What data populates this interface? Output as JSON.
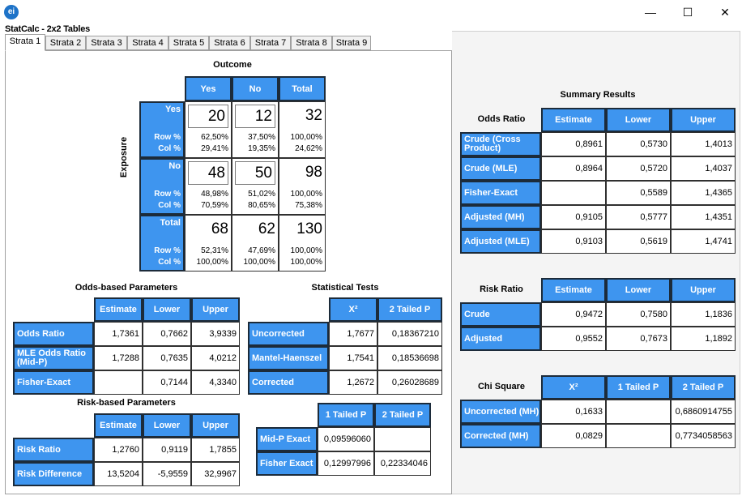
{
  "window": {
    "title": "StatCalc - 2x2 Tables",
    "icon_text": "ei",
    "minimize": "—",
    "maximize": "☐",
    "close": "✕"
  },
  "tabs": [
    "Strata 1",
    "Strata 2",
    "Strata 3",
    "Strata 4",
    "Strata 5",
    "Strata 6",
    "Strata 7",
    "Strata 8",
    "Strata 9"
  ],
  "table2x2": {
    "outcome_label": "Outcome",
    "exposure_label": "Exposure",
    "col_yes": "Yes",
    "col_no": "No",
    "col_total": "Total",
    "row_yes": "Yes",
    "row_no": "No",
    "row_total": "Total",
    "row_pct_label": "Row %",
    "col_pct_label": "Col %",
    "yes_yes": "20",
    "yes_no": "12",
    "yes_total": "32",
    "yes_yes_row": "62,50%",
    "yes_yes_col": "29,41%",
    "yes_no_row": "37,50%",
    "yes_no_col": "19,35%",
    "yes_total_row": "100,00%",
    "yes_total_col": "24,62%",
    "no_yes": "48",
    "no_no": "50",
    "no_total": "98",
    "no_yes_row": "48,98%",
    "no_yes_col": "70,59%",
    "no_no_row": "51,02%",
    "no_no_col": "80,65%",
    "no_total_row": "100,00%",
    "no_total_col": "75,38%",
    "tot_yes": "68",
    "tot_no": "62",
    "tot_total": "130",
    "tot_yes_row": "52,31%",
    "tot_yes_col": "100,00%",
    "tot_no_row": "47,69%",
    "tot_no_col": "100,00%",
    "tot_total_row": "100,00%",
    "tot_total_col": "100,00%"
  },
  "odds": {
    "title": "Odds-based Parameters",
    "headers": [
      "Estimate",
      "Lower",
      "Upper"
    ],
    "rows": [
      {
        "label": "Odds Ratio",
        "v": [
          "1,7361",
          "0,7662",
          "3,9339"
        ]
      },
      {
        "label": "MLE Odds Ratio (Mid-P)",
        "v": [
          "1,7288",
          "0,7635",
          "4,0212"
        ]
      },
      {
        "label": "Fisher-Exact",
        "v": [
          "",
          "0,7144",
          "4,3340"
        ]
      }
    ]
  },
  "risk": {
    "title": "Risk-based Parameters",
    "headers": [
      "Estimate",
      "Lower",
      "Upper"
    ],
    "rows": [
      {
        "label": "Risk Ratio",
        "v": [
          "1,2760",
          "0,9119",
          "1,7855"
        ]
      },
      {
        "label": "Risk Difference",
        "v": [
          "13,5204",
          "-5,9559",
          "32,9967"
        ]
      }
    ]
  },
  "stats": {
    "title": "Statistical Tests",
    "headers": [
      "X²",
      "2 Tailed P"
    ],
    "rows": [
      {
        "label": "Uncorrected",
        "v": [
          "1,7677",
          "0,18367210"
        ]
      },
      {
        "label": "Mantel-Haenszel",
        "v": [
          "1,7541",
          "0,18536698"
        ]
      },
      {
        "label": "Corrected",
        "v": [
          "1,2672",
          "0,26028689"
        ]
      }
    ]
  },
  "exact": {
    "headers": [
      "1 Tailed P",
      "2 Tailed P"
    ],
    "rows": [
      {
        "label": "Mid-P Exact",
        "v": [
          "0,09596060",
          ""
        ]
      },
      {
        "label": "Fisher Exact",
        "v": [
          "0,12997996",
          "0,22334046"
        ]
      }
    ]
  },
  "summary": {
    "title": "Summary Results",
    "odds_ratio": {
      "label": "Odds Ratio",
      "headers": [
        "Estimate",
        "Lower",
        "Upper"
      ],
      "rows": [
        {
          "label": "Crude (Cross Product)",
          "v": [
            "0,8961",
            "0,5730",
            "1,4013"
          ]
        },
        {
          "label": "Crude (MLE)",
          "v": [
            "0,8964",
            "0,5720",
            "1,4037"
          ]
        },
        {
          "label": "Fisher-Exact",
          "v": [
            "",
            "0,5589",
            "1,4365"
          ]
        },
        {
          "label": "Adjusted (MH)",
          "v": [
            "0,9105",
            "0,5777",
            "1,4351"
          ]
        },
        {
          "label": "Adjusted (MLE)",
          "v": [
            "0,9103",
            "0,5619",
            "1,4741"
          ]
        }
      ]
    },
    "risk_ratio": {
      "label": "Risk Ratio",
      "headers": [
        "Estimate",
        "Lower",
        "Upper"
      ],
      "rows": [
        {
          "label": "Crude",
          "v": [
            "0,9472",
            "0,7580",
            "1,1836"
          ]
        },
        {
          "label": "Adjusted",
          "v": [
            "0,9552",
            "0,7673",
            "1,1892"
          ]
        }
      ]
    },
    "chi_square": {
      "label": "Chi Square",
      "headers": [
        "X²",
        "1 Tailed P",
        "2 Tailed P"
      ],
      "rows": [
        {
          "label": "Uncorrected (MH)",
          "v": [
            "0,1633",
            "",
            "0,6860914755"
          ]
        },
        {
          "label": "Corrected (MH)",
          "v": [
            "0,0829",
            "",
            "0,7734058563"
          ]
        }
      ]
    }
  }
}
